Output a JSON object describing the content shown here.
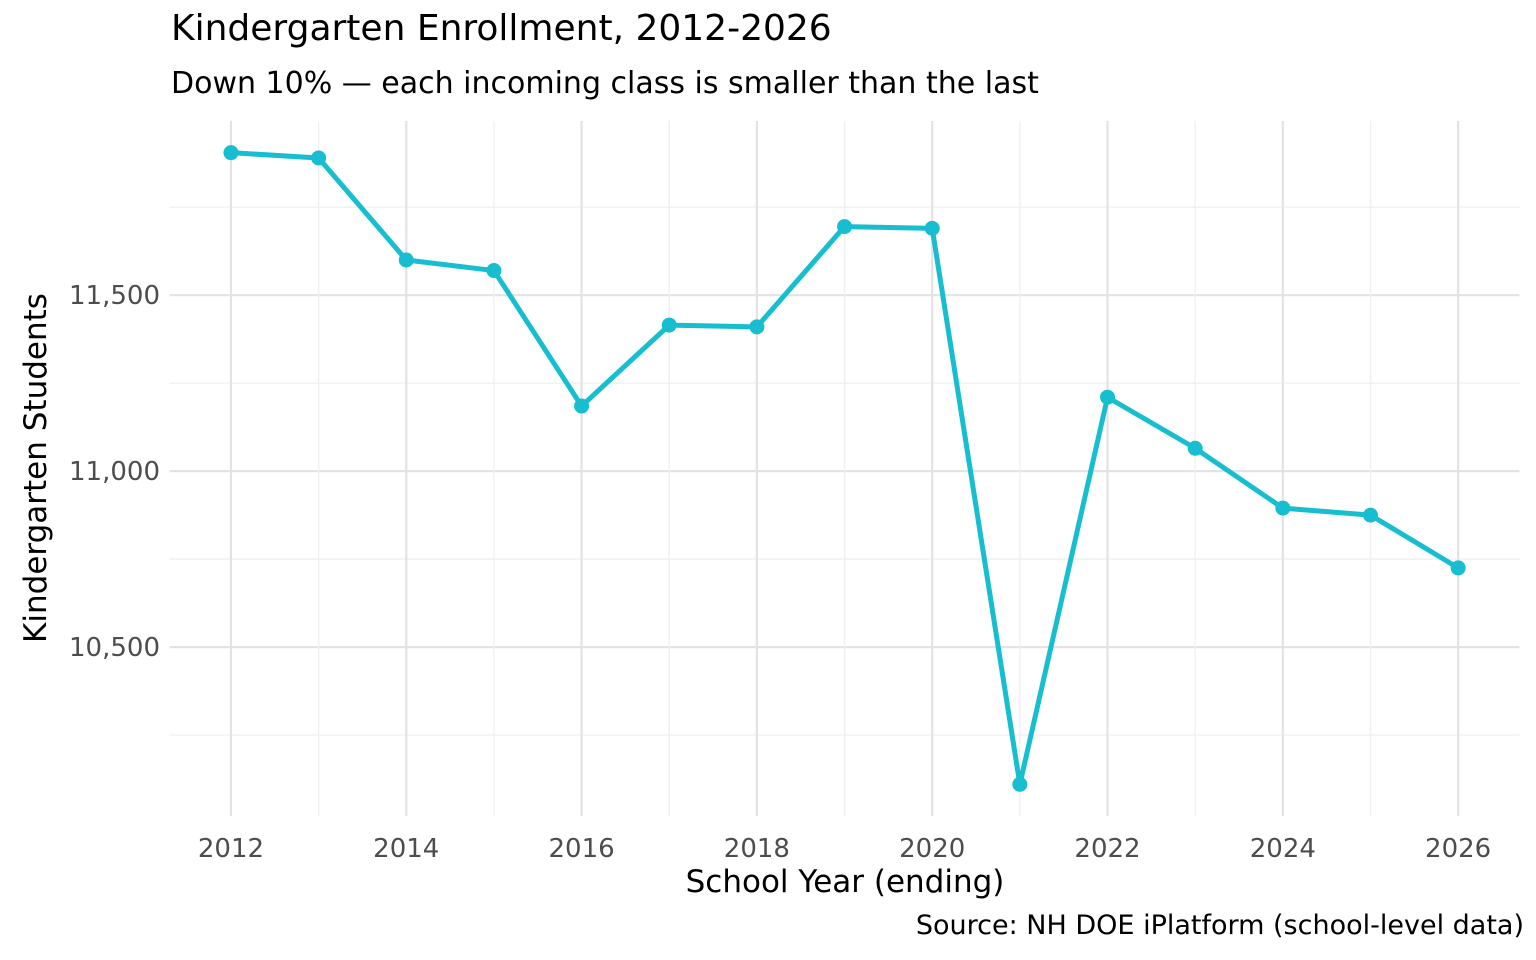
{
  "chart_data": {
    "type": "line",
    "title": "Kindergarten Enrollment, 2012-2026",
    "subtitle": "Down 10% — each incoming class is smaller than the last",
    "xlabel": "School Year (ending)",
    "ylabel": "Kindergarten Students",
    "caption": "Source: NH DOE iPlatform (school-level data)",
    "x": [
      2012,
      2013,
      2014,
      2015,
      2016,
      2017,
      2018,
      2019,
      2020,
      2021,
      2022,
      2023,
      2024,
      2025,
      2026
    ],
    "values": [
      11905,
      11890,
      11600,
      11570,
      11185,
      11415,
      11410,
      11695,
      11690,
      10110,
      11210,
      11065,
      10895,
      10875,
      10725
    ],
    "series_name": "Kindergarten Students",
    "x_ticks": [
      2012,
      2014,
      2016,
      2018,
      2020,
      2022,
      2024,
      2026
    ],
    "y_ticks": [
      {
        "value": 11500,
        "label": "11,500"
      },
      {
        "value": 11000,
        "label": "11,000"
      },
      {
        "value": 10500,
        "label": "10,500"
      }
    ],
    "xlim": [
      2011.3,
      2026.7
    ],
    "ylim": [
      10020,
      11995
    ],
    "grid": {
      "horizontal_lines": [
        10250,
        10500,
        10750,
        11000,
        11250,
        11500,
        11750
      ],
      "vertical_lines_every_year": true,
      "major_step": 500,
      "minor_between": true
    },
    "legend_position": "none",
    "colors": {
      "line": "#17becf",
      "point": "#17becf",
      "grid_major": "#e3e3e3",
      "grid_minor": "#f0f0f0",
      "tick_label": "#4d4d4d",
      "text": "#000000",
      "background": "#ffffff"
    },
    "marker_radius": 7.5,
    "line_width": 5
  }
}
